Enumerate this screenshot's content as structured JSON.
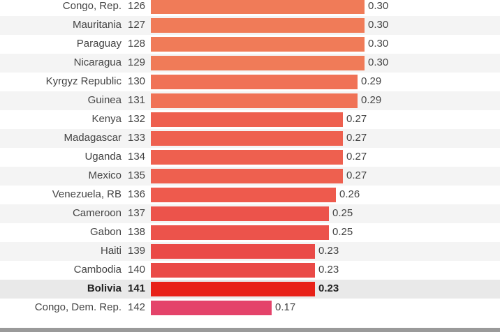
{
  "chart_data": {
    "type": "bar",
    "orientation": "horizontal",
    "highlight": "Bolivia",
    "xlim": [
      0,
      0.34
    ],
    "rows": [
      {
        "country": "Congo, Rep.",
        "rank": "126",
        "value": 0.3,
        "label": "0.30",
        "color": "#f07b58"
      },
      {
        "country": "Mauritania",
        "rank": "127",
        "value": 0.3,
        "label": "0.30",
        "color": "#f07b58"
      },
      {
        "country": "Paraguay",
        "rank": "128",
        "value": 0.3,
        "label": "0.30",
        "color": "#f07b58"
      },
      {
        "country": "Nicaragua",
        "rank": "129",
        "value": 0.3,
        "label": "0.30",
        "color": "#f07b58"
      },
      {
        "country": "Kyrgyz Republic",
        "rank": "130",
        "value": 0.29,
        "label": "0.29",
        "color": "#f07256"
      },
      {
        "country": "Guinea",
        "rank": "131",
        "value": 0.29,
        "label": "0.29",
        "color": "#f07256"
      },
      {
        "country": "Kenya",
        "rank": "132",
        "value": 0.27,
        "label": "0.27",
        "color": "#ee604f"
      },
      {
        "country": "Madagascar",
        "rank": "133",
        "value": 0.27,
        "label": "0.27",
        "color": "#ee604f"
      },
      {
        "country": "Uganda",
        "rank": "134",
        "value": 0.27,
        "label": "0.27",
        "color": "#ee604f"
      },
      {
        "country": "Mexico",
        "rank": "135",
        "value": 0.27,
        "label": "0.27",
        "color": "#ee604f"
      },
      {
        "country": "Venezuela, RB",
        "rank": "136",
        "value": 0.26,
        "label": "0.26",
        "color": "#ee5a4d"
      },
      {
        "country": "Cameroon",
        "rank": "137",
        "value": 0.25,
        "label": "0.25",
        "color": "#ec534b"
      },
      {
        "country": "Gabon",
        "rank": "138",
        "value": 0.25,
        "label": "0.25",
        "color": "#ec534b"
      },
      {
        "country": "Haiti",
        "rank": "139",
        "value": 0.23,
        "label": "0.23",
        "color": "#ea4a47"
      },
      {
        "country": "Cambodia",
        "rank": "140",
        "value": 0.23,
        "label": "0.23",
        "color": "#ea4a47"
      },
      {
        "country": "Bolivia",
        "rank": "141",
        "value": 0.23,
        "label": "0.23",
        "color": "#e82118"
      },
      {
        "country": "Congo, Dem. Rep.",
        "rank": "142",
        "value": 0.17,
        "label": "0.17",
        "color": "#e4436a"
      }
    ]
  }
}
